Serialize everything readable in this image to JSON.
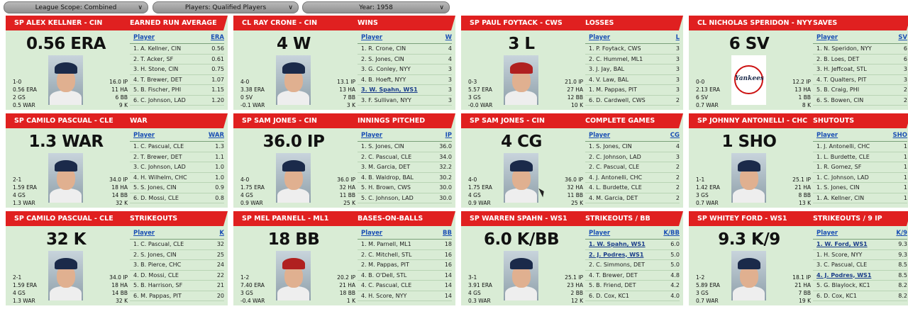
{
  "filters": {
    "scope": "League Scope: Combined",
    "players": "Players: Qualified Players",
    "year": "Year: 1958"
  },
  "cards": [
    {
      "player": "SP ALEX KELLNER - CIN",
      "category": "EARNED RUN AVERAGE",
      "big": "0.56 ERA",
      "left": [
        "1-0",
        "0.56 ERA",
        "2 GS",
        "0.5 WAR"
      ],
      "right": [
        "16.0 IP",
        "11 HA",
        "6 BB",
        "9 K"
      ],
      "col_player": "Player",
      "col_stat": "ERA",
      "photo": "player-photo",
      "rows": [
        {
          "name": "1. A. Kellner, CIN",
          "val": "0.56"
        },
        {
          "name": "2. T. Acker, SF",
          "val": "0.61"
        },
        {
          "name": "3. H. Stone, CIN",
          "val": "0.75"
        },
        {
          "name": "4. T. Brewer, DET",
          "val": "1.07"
        },
        {
          "name": "5. B. Fischer, PHI",
          "val": "1.15"
        },
        {
          "name": "6. C. Johnson, LAD",
          "val": "1.20"
        }
      ]
    },
    {
      "player": "CL RAY CRONE - CIN",
      "category": "WINS",
      "big": "4 W",
      "left": [
        "4-0",
        "3.38 ERA",
        "0 SV",
        "-0.1 WAR"
      ],
      "right": [
        "13.1 IP",
        "13 HA",
        "7 BB",
        "3 K"
      ],
      "col_player": "Player",
      "col_stat": "W",
      "photo": "player-photo",
      "rows": [
        {
          "name": "1. R. Crone, CIN",
          "val": "4"
        },
        {
          "name": "2. S. Jones, CIN",
          "val": "4"
        },
        {
          "name": "3. G. Conley, NYY",
          "val": "3"
        },
        {
          "name": "4. B. Hoeft, NYY",
          "val": "3"
        },
        {
          "name": "3. W. Spahn, WS1",
          "val": "3",
          "hl": true
        },
        {
          "name": "3. F. Sullivan, NYY",
          "val": "3"
        }
      ]
    },
    {
      "player": "SP PAUL FOYTACK - CWS",
      "category": "LOSSES",
      "big": "3 L",
      "left": [
        "0-3",
        "5.57 ERA",
        "3 GS",
        "-0.0 WAR"
      ],
      "right": [
        "21.0 IP",
        "27 HA",
        "12 BB",
        "10 K"
      ],
      "col_player": "Player",
      "col_stat": "L",
      "photo": "player-photo",
      "rows": [
        {
          "name": "1. P. Foytack, CWS",
          "val": "3"
        },
        {
          "name": "2. C. Hummel, ML1",
          "val": "3"
        },
        {
          "name": "3. J. Jay, BAL",
          "val": "3"
        },
        {
          "name": "4. V. Law, BAL",
          "val": "3"
        },
        {
          "name": "1. M. Pappas, PIT",
          "val": "3"
        },
        {
          "name": "6. D. Cardwell, CWS",
          "val": "2"
        }
      ]
    },
    {
      "player": "CL NICHOLAS SPERIDON - NYY",
      "category": "SAVES",
      "big": "6 SV",
      "left": [
        "0-0",
        "2.13 ERA",
        "6 SV",
        "0.7 WAR"
      ],
      "right": [
        "12.2 IP",
        "13 HA",
        "1 BB",
        "8 K"
      ],
      "col_player": "Player",
      "col_stat": "SV",
      "photo": "yankees-logo",
      "rows": [
        {
          "name": "1. N. Speridon, NYY",
          "val": "6"
        },
        {
          "name": "2. B. Loes, DET",
          "val": "6"
        },
        {
          "name": "3. H. Jeffcoat, STL",
          "val": "3"
        },
        {
          "name": "4. T. Qualters, PIT",
          "val": "3"
        },
        {
          "name": "5. B. Craig, PHI",
          "val": "2"
        },
        {
          "name": "6. S. Bowen, CIN",
          "val": "2"
        }
      ]
    },
    {
      "player": "SP CAMILO PASCUAL - CLE",
      "category": "WAR",
      "big": "1.3 WAR",
      "left": [
        "2-1",
        "1.59 ERA",
        "4 GS",
        "1.3 WAR"
      ],
      "right": [
        "34.0 IP",
        "18 HA",
        "14 BB",
        "32 K"
      ],
      "col_player": "Player",
      "col_stat": "WAR",
      "photo": "player-photo",
      "rows": [
        {
          "name": "1. C. Pascual, CLE",
          "val": "1.3"
        },
        {
          "name": "2. T. Brewer, DET",
          "val": "1.1"
        },
        {
          "name": "3. C. Johnson, LAD",
          "val": "1.0"
        },
        {
          "name": "4. H. Wilhelm, CHC",
          "val": "1.0"
        },
        {
          "name": "5. S. Jones, CIN",
          "val": "0.9"
        },
        {
          "name": "6. D. Mossi, CLE",
          "val": "0.8"
        }
      ]
    },
    {
      "player": "SP SAM JONES - CIN",
      "category": "INNINGS PITCHED",
      "big": "36.0 IP",
      "left": [
        "4-0",
        "1.75 ERA",
        "4 GS",
        "0.9 WAR"
      ],
      "right": [
        "36.0 IP",
        "32 HA",
        "11 BB",
        "25 K"
      ],
      "col_player": "Player",
      "col_stat": "IP",
      "photo": "player-photo",
      "rows": [
        {
          "name": "1. S. Jones, CIN",
          "val": "36.0"
        },
        {
          "name": "2. C. Pascual, CLE",
          "val": "34.0"
        },
        {
          "name": "3. M. Garcia, DET",
          "val": "32.2"
        },
        {
          "name": "4. B. Waldrop, BAL",
          "val": "30.2"
        },
        {
          "name": "5. H. Brown, CWS",
          "val": "30.0"
        },
        {
          "name": "5. C. Johnson, LAD",
          "val": "30.0"
        }
      ]
    },
    {
      "player": "SP SAM JONES - CIN",
      "category": "COMPLETE GAMES",
      "big": "4 CG",
      "left": [
        "4-0",
        "1.75 ERA",
        "4 GS",
        "0.9 WAR"
      ],
      "right": [
        "36.0 IP",
        "32 HA",
        "11 BB",
        "25 K"
      ],
      "col_player": "Player",
      "col_stat": "CG",
      "photo": "player-photo",
      "rows": [
        {
          "name": "1. S. Jones, CIN",
          "val": "4"
        },
        {
          "name": "2. C. Johnson, LAD",
          "val": "3"
        },
        {
          "name": "2. C. Pascual, CLE",
          "val": "2"
        },
        {
          "name": "4. J. Antonelli, CHC",
          "val": "2"
        },
        {
          "name": "4. L. Burdette, CLE",
          "val": "2"
        },
        {
          "name": "4. M. Garcia, DET",
          "val": "2"
        }
      ]
    },
    {
      "player": "SP JOHNNY ANTONELLI - CHC",
      "category": "SHUTOUTS",
      "big": "1 SHO",
      "left": [
        "1-1",
        "1.42 ERA",
        "3 GS",
        "0.7 WAR"
      ],
      "right": [
        "25.1 IP",
        "21 HA",
        "8 BB",
        "13 K"
      ],
      "col_player": "Player",
      "col_stat": "SHO",
      "photo": "player-photo",
      "rows": [
        {
          "name": "1. J. Antonelli, CHC",
          "val": "1"
        },
        {
          "name": "1. L. Burdette, CLE",
          "val": "1"
        },
        {
          "name": "1. R. Gomez, SF",
          "val": "1"
        },
        {
          "name": "1. C. Johnson, LAD",
          "val": "1"
        },
        {
          "name": "1. S. Jones, CIN",
          "val": "1"
        },
        {
          "name": "1. A. Kellner, CIN",
          "val": "1"
        }
      ]
    },
    {
      "player": "SP CAMILO PASCUAL - CLE",
      "category": "STRIKEOUTS",
      "big": "32 K",
      "left": [
        "2-1",
        "1.59 ERA",
        "4 GS",
        "1.3 WAR"
      ],
      "right": [
        "34.0 IP",
        "18 HA",
        "14 BB",
        "32 K"
      ],
      "col_player": "Player",
      "col_stat": "K",
      "photo": "player-photo",
      "rows": [
        {
          "name": "1. C. Pascual, CLE",
          "val": "32"
        },
        {
          "name": "2. S. Jones, CIN",
          "val": "25"
        },
        {
          "name": "3. B. Pierce, CHC",
          "val": "24"
        },
        {
          "name": "4. D. Mossi, CLE",
          "val": "22"
        },
        {
          "name": "5. B. Harrison, SF",
          "val": "21"
        },
        {
          "name": "6. M. Pappas, PIT",
          "val": "20"
        }
      ]
    },
    {
      "player": "SP MEL PARNELL - ML1",
      "category": "BASES-ON-BALLS",
      "big": "18 BB",
      "left": [
        "1-2",
        "7.40 ERA",
        "3 GS",
        "-0.4 WAR"
      ],
      "right": [
        "20.2 IP",
        "21 HA",
        "18 BB",
        "1 K"
      ],
      "col_player": "Player",
      "col_stat": "BB",
      "photo": "player-photo",
      "rows": [
        {
          "name": "1. M. Parnell, ML1",
          "val": "18"
        },
        {
          "name": "2. C. Mitchell, STL",
          "val": "16"
        },
        {
          "name": "2. M. Pappas, PIT",
          "val": "16"
        },
        {
          "name": "4. B. O'Dell, STL",
          "val": "14"
        },
        {
          "name": "4. C. Pascual, CLE",
          "val": "14"
        },
        {
          "name": "4. H. Score, NYY",
          "val": "14"
        }
      ]
    },
    {
      "player": "SP WARREN SPAHN - WS1",
      "category": "STRIKEOUTS / BB",
      "big": "6.0 K/BB",
      "left": [
        "3-1",
        "3.91 ERA",
        "4 GS",
        "0.3 WAR"
      ],
      "right": [
        "25.1 IP",
        "23 HA",
        "2 BB",
        "12 K"
      ],
      "col_player": "Player",
      "col_stat": "K/BB",
      "photo": "player-photo",
      "rows": [
        {
          "name": "1. W. Spahn, WS1",
          "val": "6.0",
          "hl": true
        },
        {
          "name": "2. J. Podres, WS1",
          "val": "5.0",
          "hl": true
        },
        {
          "name": "2. C. Simmons, DET",
          "val": "5.0"
        },
        {
          "name": "4. T. Brewer, DET",
          "val": "4.8"
        },
        {
          "name": "5. B. Friend, DET",
          "val": "4.2"
        },
        {
          "name": "6. D. Cox, KC1",
          "val": "4.0"
        }
      ]
    },
    {
      "player": "SP WHITEY FORD - WS1",
      "category": "STRIKEOUTS / 9 IP",
      "big": "9.3 K/9",
      "left": [
        "1-2",
        "5.89 ERA",
        "3 GS",
        "0.7 WAR"
      ],
      "right": [
        "18.1 IP",
        "21 HA",
        "7 BB",
        "19 K"
      ],
      "col_player": "Player",
      "col_stat": "K/9",
      "photo": "player-photo",
      "rows": [
        {
          "name": "1. W. Ford, WS1",
          "val": "9.3",
          "hl": true
        },
        {
          "name": "1. H. Score, NYY",
          "val": "9.3"
        },
        {
          "name": "3. C. Pascual, CLE",
          "val": "8.5"
        },
        {
          "name": "4. J. Podres, WS1",
          "val": "8.5",
          "hl": true
        },
        {
          "name": "5. G. Blaylock, KC1",
          "val": "8.2"
        },
        {
          "name": "6. D. Cox, KC1",
          "val": "8.2"
        }
      ]
    }
  ]
}
